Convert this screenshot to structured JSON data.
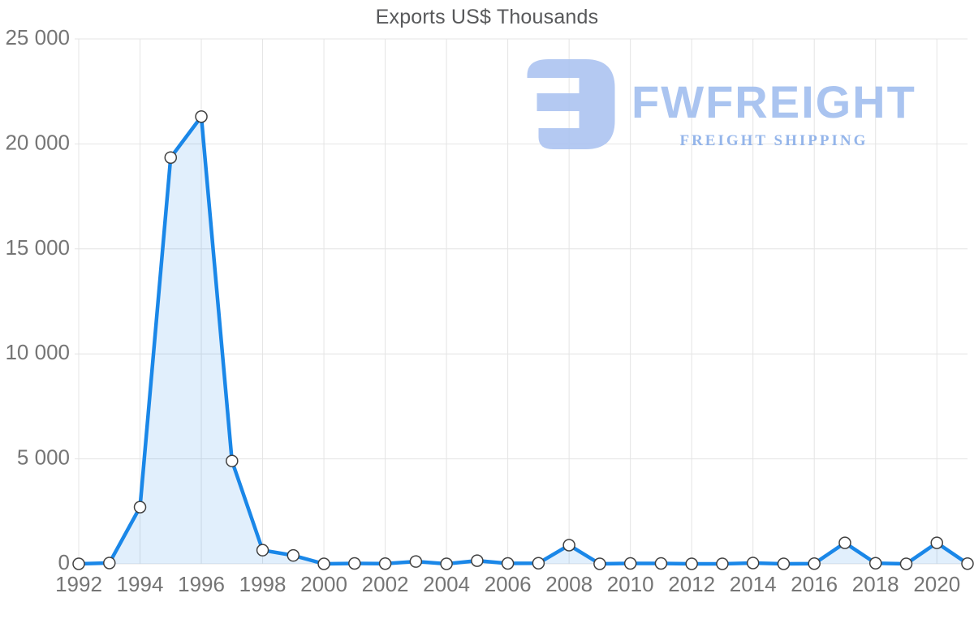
{
  "title": "Exports US$ Thousands",
  "watermark": {
    "brand": "FWFREIGHT",
    "tagline": "FREIGHT SHIPPING",
    "icon_name": "fwfreight-logo-icon",
    "icon_color": "#aec5f1",
    "brand_color": "#a3bfef",
    "tagline_color": "#8bafe9"
  },
  "chart_data": {
    "type": "area",
    "title": "Exports US$ Thousands",
    "x": [
      1992,
      1993,
      1994,
      1995,
      1996,
      1997,
      1998,
      1999,
      2000,
      2001,
      2002,
      2003,
      2004,
      2005,
      2006,
      2007,
      2008,
      2009,
      2010,
      2011,
      2012,
      2013,
      2014,
      2015,
      2016,
      2017,
      2018,
      2019,
      2020,
      2021
    ],
    "series": [
      {
        "name": "Exports US$ Thousands",
        "values": [
          0,
          40,
          2700,
          19350,
          21300,
          4900,
          650,
          400,
          0,
          20,
          10,
          110,
          0,
          150,
          20,
          30,
          890,
          0,
          20,
          20,
          0,
          0,
          40,
          0,
          10,
          1000,
          30,
          0,
          1000,
          10
        ]
      }
    ],
    "xlabel": "",
    "ylabel": "",
    "ylim": [
      0,
      25000
    ],
    "xlim": [
      1992,
      2021
    ],
    "y_ticks": [
      0,
      5000,
      10000,
      15000,
      20000,
      25000
    ],
    "y_tick_labels": [
      "0",
      "5 000",
      "10 000",
      "15 000",
      "20 000",
      "25 000"
    ],
    "x_tick_years": [
      1992,
      1994,
      1996,
      1998,
      2000,
      2002,
      2004,
      2006,
      2008,
      2010,
      2012,
      2014,
      2016,
      2018,
      2020
    ],
    "x_tick_labels": [
      "1992",
      "1994",
      "1996",
      "1998",
      "2000",
      "2002",
      "2004",
      "2006",
      "2008",
      "2010",
      "2012",
      "2014",
      "2016",
      "2018",
      "2020"
    ],
    "grid": true,
    "legend": false,
    "grid_color": "#e4e4e4",
    "line_color": "#1a87e8",
    "fill_color": "rgba(26,135,232,0.13)",
    "tick_label_color": "#757575",
    "marker_fill": "#ffffff",
    "marker_stroke": "#404040"
  }
}
